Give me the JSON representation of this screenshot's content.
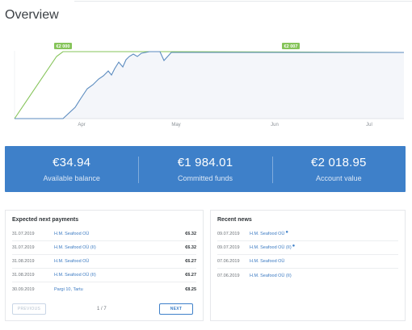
{
  "page": {
    "title": "Overview"
  },
  "chart": {
    "x_ticks": [
      "Apr",
      "May",
      "Jun",
      "Jul"
    ],
    "flags": [
      "€2 000",
      "€2 007"
    ],
    "colors": {
      "green": "#86c45a",
      "blue": "#5b8bbf",
      "fill": "#f4f6fa",
      "axis": "#d8dde2"
    }
  },
  "summary": {
    "balance_value": "€34.94",
    "balance_label": "Available balance",
    "committed_value": "€1 984.01",
    "committed_label": "Committed funds",
    "account_value": "€2 018.95",
    "account_label": "Account value"
  },
  "payments": {
    "title": "Expected next payments",
    "rows": [
      {
        "date": "31.07.2019",
        "name": "H.M. Seafood OÜ",
        "amount": "€6.32"
      },
      {
        "date": "31.07.2019",
        "name": "H.M. Seafood OÜ (II)",
        "amount": "€6.32"
      },
      {
        "date": "31.08.2019",
        "name": "H.M. Seafood OÜ",
        "amount": "€6.27"
      },
      {
        "date": "31.08.2019",
        "name": "H.M. Seafood OÜ (II)",
        "amount": "€6.27"
      },
      {
        "date": "30.09.2019",
        "name": "Pargi 10, Tartu",
        "amount": "€8.25"
      }
    ],
    "prev_label": "PREVIOUS",
    "pager": "1 / 7",
    "next_label": "NEXT"
  },
  "news": {
    "title": "Recent news",
    "rows": [
      {
        "date": "09.07.2019",
        "name": "H.M. Seafood OÜ",
        "unread": "●"
      },
      {
        "date": "09.07.2019",
        "name": "H.M. Seafood OÜ (II)",
        "unread": "●"
      },
      {
        "date": "07.06.2019",
        "name": "H.M. Seafood OÜ",
        "unread": ""
      },
      {
        "date": "07.06.2019",
        "name": "H.M. Seafood OÜ (II)",
        "unread": ""
      }
    ]
  }
}
